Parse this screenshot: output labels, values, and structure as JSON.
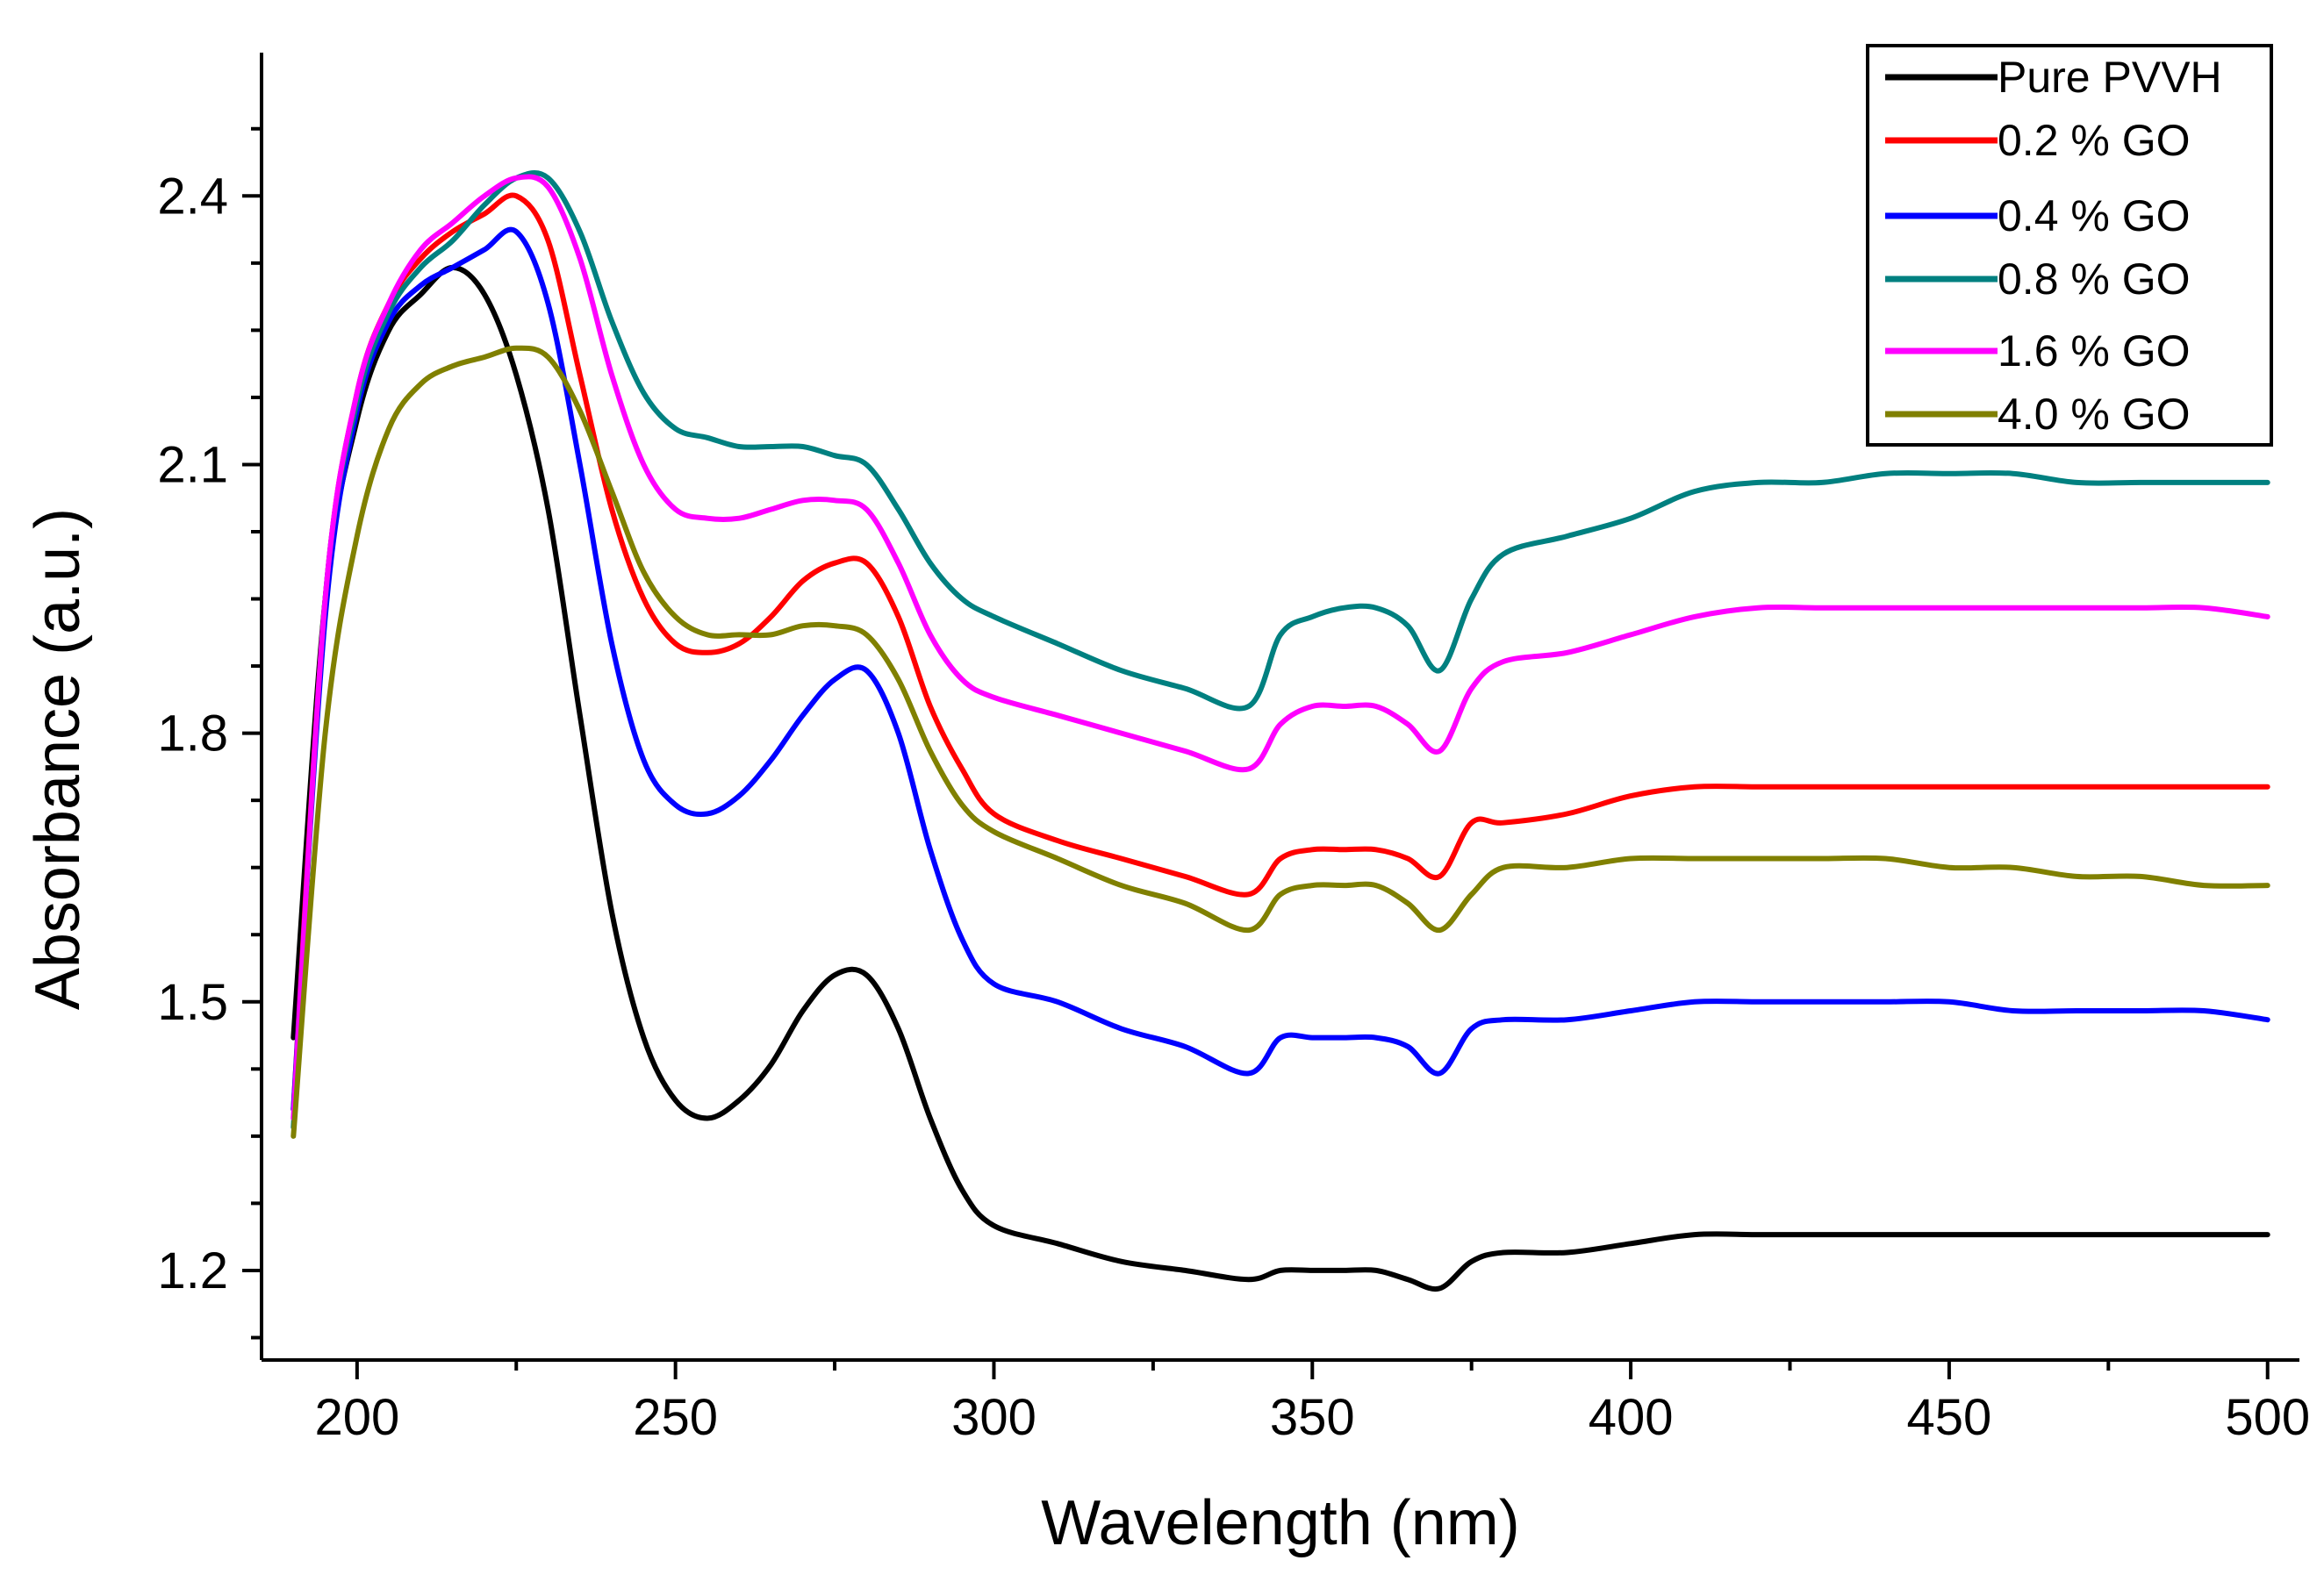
{
  "chart_data": {
    "type": "line",
    "title": "",
    "xlabel": "Wavelength (nm)",
    "ylabel": "Absorbance (a.u.)",
    "xlim": [
      185,
      505
    ],
    "ylim": [
      1.1,
      2.56
    ],
    "xticks": [
      200,
      250,
      300,
      350,
      400,
      450,
      500
    ],
    "yticks": [
      1.2,
      1.5,
      1.8,
      2.1,
      2.4
    ],
    "xtick_labels": [
      "200",
      "250",
      "300",
      "350",
      "400",
      "450",
      "500"
    ],
    "ytick_labels": [
      "1.2",
      "1.5",
      "1.8",
      "2.1",
      "2.4"
    ],
    "legend_position": "top-right",
    "series": [
      {
        "name": "Pure PVVH",
        "color": "#000000",
        "x": [
          190,
          195,
          200,
          205,
          210,
          215,
          220,
          225,
          230,
          235,
          240,
          245,
          250,
          255,
          260,
          265,
          270,
          275,
          280,
          285,
          290,
          295,
          300,
          310,
          320,
          330,
          340,
          345,
          350,
          355,
          360,
          365,
          370,
          375,
          380,
          390,
          400,
          410,
          420,
          430,
          440,
          450,
          460,
          470,
          480,
          490,
          500
        ],
        "y": [
          1.46,
          1.95,
          2.15,
          2.25,
          2.29,
          2.32,
          2.29,
          2.2,
          2.05,
          1.82,
          1.6,
          1.46,
          1.39,
          1.37,
          1.39,
          1.43,
          1.49,
          1.53,
          1.53,
          1.47,
          1.37,
          1.29,
          1.25,
          1.23,
          1.21,
          1.2,
          1.19,
          1.2,
          1.2,
          1.2,
          1.2,
          1.19,
          1.18,
          1.21,
          1.22,
          1.22,
          1.23,
          1.24,
          1.24,
          1.24,
          1.24,
          1.24,
          1.24,
          1.24,
          1.24,
          1.24,
          1.24
        ]
      },
      {
        "name": "0.2 % GO",
        "color": "#ff0000",
        "x": [
          190,
          195,
          200,
          205,
          210,
          215,
          220,
          225,
          230,
          235,
          240,
          245,
          250,
          255,
          260,
          265,
          270,
          275,
          280,
          285,
          290,
          295,
          300,
          310,
          320,
          330,
          340,
          345,
          350,
          355,
          360,
          365,
          370,
          375,
          380,
          390,
          400,
          410,
          420,
          430,
          440,
          450,
          460,
          470,
          480,
          490,
          500
        ],
        "y": [
          1.38,
          1.95,
          2.18,
          2.28,
          2.33,
          2.36,
          2.38,
          2.4,
          2.35,
          2.2,
          2.05,
          1.95,
          1.9,
          1.89,
          1.9,
          1.93,
          1.97,
          1.99,
          1.99,
          1.93,
          1.83,
          1.76,
          1.71,
          1.68,
          1.66,
          1.64,
          1.62,
          1.66,
          1.67,
          1.67,
          1.67,
          1.66,
          1.64,
          1.7,
          1.7,
          1.71,
          1.73,
          1.74,
          1.74,
          1.74,
          1.74,
          1.74,
          1.74,
          1.74,
          1.74,
          1.74,
          1.74
        ]
      },
      {
        "name": "0.4 % GO",
        "color": "#0000ff",
        "x": [
          190,
          195,
          200,
          205,
          210,
          215,
          220,
          225,
          230,
          235,
          240,
          245,
          250,
          255,
          260,
          265,
          270,
          275,
          280,
          285,
          290,
          295,
          300,
          310,
          320,
          330,
          340,
          345,
          350,
          355,
          360,
          365,
          370,
          375,
          380,
          390,
          400,
          410,
          420,
          430,
          440,
          450,
          460,
          470,
          480,
          490,
          500
        ],
        "y": [
          1.38,
          1.93,
          2.16,
          2.26,
          2.3,
          2.32,
          2.34,
          2.36,
          2.28,
          2.1,
          1.9,
          1.77,
          1.72,
          1.71,
          1.73,
          1.77,
          1.82,
          1.86,
          1.87,
          1.8,
          1.67,
          1.57,
          1.52,
          1.5,
          1.47,
          1.45,
          1.42,
          1.46,
          1.46,
          1.46,
          1.46,
          1.45,
          1.42,
          1.47,
          1.48,
          1.48,
          1.49,
          1.5,
          1.5,
          1.5,
          1.5,
          1.5,
          1.49,
          1.49,
          1.49,
          1.49,
          1.48
        ]
      },
      {
        "name": "0.8 % GO",
        "color": "#008080",
        "x": [
          190,
          195,
          200,
          205,
          210,
          215,
          220,
          225,
          230,
          235,
          240,
          245,
          250,
          255,
          260,
          265,
          270,
          275,
          280,
          285,
          290,
          295,
          300,
          310,
          320,
          330,
          340,
          345,
          350,
          355,
          360,
          365,
          370,
          375,
          380,
          390,
          400,
          410,
          420,
          430,
          440,
          450,
          460,
          470,
          480,
          490,
          500
        ],
        "y": [
          1.36,
          1.95,
          2.17,
          2.27,
          2.32,
          2.35,
          2.39,
          2.42,
          2.42,
          2.36,
          2.26,
          2.18,
          2.14,
          2.13,
          2.12,
          2.12,
          2.12,
          2.11,
          2.1,
          2.05,
          1.99,
          1.95,
          1.93,
          1.9,
          1.87,
          1.85,
          1.83,
          1.91,
          1.93,
          1.94,
          1.94,
          1.92,
          1.87,
          1.95,
          2.0,
          2.02,
          2.04,
          2.07,
          2.08,
          2.08,
          2.09,
          2.09,
          2.09,
          2.08,
          2.08,
          2.08,
          2.08
        ]
      },
      {
        "name": "1.6 % GO",
        "color": "#ff00ff",
        "x": [
          190,
          195,
          200,
          205,
          210,
          215,
          220,
          225,
          230,
          235,
          240,
          245,
          250,
          255,
          260,
          265,
          270,
          275,
          280,
          285,
          290,
          295,
          300,
          310,
          320,
          330,
          340,
          345,
          350,
          355,
          360,
          365,
          370,
          375,
          380,
          390,
          400,
          410,
          420,
          430,
          440,
          450,
          460,
          470,
          480,
          490,
          500
        ],
        "y": [
          1.37,
          1.95,
          2.18,
          2.28,
          2.34,
          2.37,
          2.4,
          2.42,
          2.41,
          2.33,
          2.2,
          2.1,
          2.05,
          2.04,
          2.04,
          2.05,
          2.06,
          2.06,
          2.05,
          1.99,
          1.91,
          1.86,
          1.84,
          1.82,
          1.8,
          1.78,
          1.76,
          1.81,
          1.83,
          1.83,
          1.83,
          1.81,
          1.78,
          1.85,
          1.88,
          1.89,
          1.91,
          1.93,
          1.94,
          1.94,
          1.94,
          1.94,
          1.94,
          1.94,
          1.94,
          1.94,
          1.93
        ]
      },
      {
        "name": "4.0 % GO",
        "color": "#808000",
        "x": [
          190,
          195,
          200,
          205,
          210,
          215,
          220,
          225,
          230,
          235,
          240,
          245,
          250,
          255,
          260,
          265,
          270,
          275,
          280,
          285,
          290,
          295,
          300,
          310,
          320,
          330,
          340,
          345,
          350,
          355,
          360,
          365,
          370,
          375,
          380,
          390,
          400,
          410,
          420,
          430,
          440,
          450,
          460,
          470,
          480,
          490,
          500
        ],
        "y": [
          1.35,
          1.8,
          2.02,
          2.14,
          2.19,
          2.21,
          2.22,
          2.23,
          2.22,
          2.16,
          2.07,
          1.98,
          1.93,
          1.91,
          1.91,
          1.91,
          1.92,
          1.92,
          1.91,
          1.86,
          1.78,
          1.72,
          1.69,
          1.66,
          1.63,
          1.61,
          1.58,
          1.62,
          1.63,
          1.63,
          1.63,
          1.61,
          1.58,
          1.62,
          1.65,
          1.65,
          1.66,
          1.66,
          1.66,
          1.66,
          1.66,
          1.65,
          1.65,
          1.64,
          1.64,
          1.63,
          1.63
        ]
      }
    ]
  }
}
